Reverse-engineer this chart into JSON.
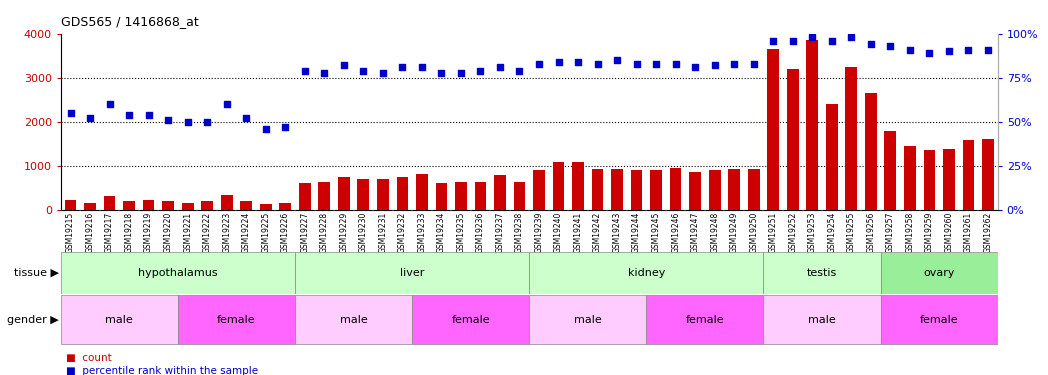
{
  "title": "GDS565 / 1416868_at",
  "samples": [
    "GSM19215",
    "GSM19216",
    "GSM19217",
    "GSM19218",
    "GSM19219",
    "GSM19220",
    "GSM19221",
    "GSM19222",
    "GSM19223",
    "GSM19224",
    "GSM19225",
    "GSM19226",
    "GSM19227",
    "GSM19228",
    "GSM19229",
    "GSM19230",
    "GSM19231",
    "GSM19232",
    "GSM19233",
    "GSM19234",
    "GSM19235",
    "GSM19236",
    "GSM19237",
    "GSM19238",
    "GSM19239",
    "GSM19240",
    "GSM19241",
    "GSM19242",
    "GSM19243",
    "GSM19244",
    "GSM19245",
    "GSM19246",
    "GSM19247",
    "GSM19248",
    "GSM19249",
    "GSM19250",
    "GSM19251",
    "GSM19252",
    "GSM19253",
    "GSM19254",
    "GSM19255",
    "GSM19256",
    "GSM19257",
    "GSM19258",
    "GSM19259",
    "GSM19260",
    "GSM19261",
    "GSM19262"
  ],
  "counts": [
    220,
    160,
    310,
    200,
    220,
    200,
    155,
    210,
    340,
    200,
    130,
    170,
    620,
    630,
    750,
    710,
    700,
    750,
    820,
    620,
    640,
    630,
    800,
    640,
    900,
    1080,
    1080,
    920,
    920,
    900,
    900,
    950,
    870,
    900,
    920,
    940,
    3650,
    3200,
    3850,
    2400,
    3250,
    2650,
    1800,
    1450,
    1370,
    1380,
    1580,
    1620
  ],
  "percentile_raw": [
    55,
    52,
    60,
    54,
    54,
    51,
    50,
    50,
    60,
    52,
    46,
    47,
    79,
    78,
    82,
    79,
    78,
    81,
    81,
    78,
    78,
    79,
    81,
    79,
    83,
    84,
    84,
    83,
    85,
    83,
    83,
    83,
    81,
    82,
    83,
    83,
    96,
    96,
    98,
    96,
    98,
    94,
    93,
    91,
    89,
    90,
    91,
    91
  ],
  "tissue_groups": [
    {
      "label": "hypothalamus",
      "start": 0,
      "end": 12,
      "color": "#ccffcc"
    },
    {
      "label": "liver",
      "start": 12,
      "end": 24,
      "color": "#ccffcc"
    },
    {
      "label": "kidney",
      "start": 24,
      "end": 36,
      "color": "#ccffcc"
    },
    {
      "label": "testis",
      "start": 36,
      "end": 42,
      "color": "#ccffcc"
    },
    {
      "label": "ovary",
      "start": 42,
      "end": 48,
      "color": "#99ee99"
    }
  ],
  "gender_groups": [
    {
      "label": "male",
      "start": 0,
      "end": 6,
      "color": "#ffccff"
    },
    {
      "label": "female",
      "start": 6,
      "end": 12,
      "color": "#ff66ff"
    },
    {
      "label": "male",
      "start": 12,
      "end": 18,
      "color": "#ffccff"
    },
    {
      "label": "female",
      "start": 18,
      "end": 24,
      "color": "#ff66ff"
    },
    {
      "label": "male",
      "start": 24,
      "end": 30,
      "color": "#ffccff"
    },
    {
      "label": "female",
      "start": 30,
      "end": 36,
      "color": "#ff66ff"
    },
    {
      "label": "male",
      "start": 36,
      "end": 42,
      "color": "#ffccff"
    },
    {
      "label": "female",
      "start": 42,
      "end": 48,
      "color": "#ff66ff"
    }
  ],
  "bar_color": "#cc0000",
  "dot_color": "#0000cc",
  "left_axis_color": "#cc0000",
  "right_axis_color": "#0000cc",
  "ylim_left": [
    0,
    4000
  ],
  "yticks_left": [
    0,
    1000,
    2000,
    3000,
    4000
  ],
  "yticks_right": [
    0,
    25,
    50,
    75,
    100
  ],
  "background_color": "#ffffff",
  "plot_bg_color": "#ffffff",
  "xtick_bg_color": "#dddddd",
  "tissue_row_label": "tissue",
  "gender_row_label": "gender",
  "legend_count": "count",
  "legend_percentile": "percentile rank within the sample"
}
